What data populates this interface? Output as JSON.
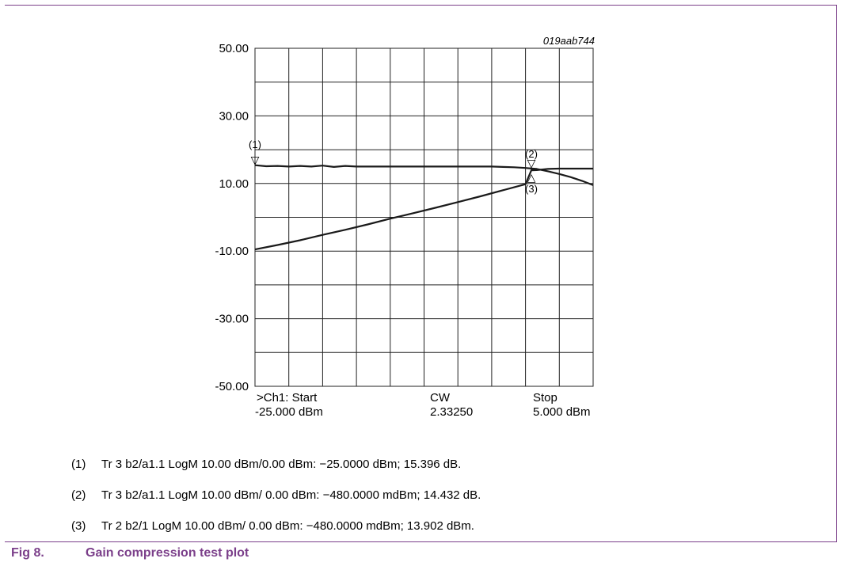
{
  "chart_data": {
    "type": "line",
    "title": "",
    "id_label": "019aab744",
    "xlabel": "",
    "ylabel": "",
    "x_unit": "dBm",
    "xlim": [
      -25,
      5
    ],
    "ylim": [
      -50,
      50
    ],
    "y_ticks": [
      "50.00",
      "30.00",
      "10.00",
      "-10.00",
      "-30.00",
      "-50.00"
    ],
    "y_tick_values": [
      50,
      30,
      10,
      -10,
      -30,
      -50
    ],
    "grid": true,
    "x_footer": [
      {
        "line1": ">Ch1: Start",
        "line2": "-25.000 dBm"
      },
      {
        "line1": "CW",
        "line2": "2.33250"
      },
      {
        "line1": "Stop",
        "line2": "5.000 dBm"
      }
    ],
    "series": [
      {
        "x": [
          -25,
          -24,
          -23,
          -22,
          -21,
          -20,
          -19,
          -18,
          -17,
          -16,
          -15,
          -14,
          -13,
          -12,
          -11,
          -10,
          -9,
          -8,
          -7,
          -6,
          -5,
          -4,
          -3,
          -2,
          -1,
          -0.48,
          0,
          1,
          2,
          3,
          4,
          5
        ],
        "y": [
          15.4,
          15.1,
          15.2,
          15.0,
          15.2,
          15.0,
          15.3,
          14.9,
          15.2,
          15.0,
          15.0,
          15.0,
          15.0,
          15.0,
          15.0,
          15.0,
          15.0,
          15.0,
          15.0,
          15.0,
          15.0,
          15.0,
          14.9,
          14.8,
          14.6,
          14.43,
          14.3,
          13.6,
          12.8,
          11.9,
          10.8,
          9.5
        ]
      },
      {
        "x": [
          -25,
          -23,
          -21,
          -19,
          -17,
          -15,
          -13,
          -11,
          -9,
          -7,
          -5,
          -3,
          -1,
          -0.48,
          0,
          1,
          2,
          3,
          4,
          5
        ],
        "y": [
          -9.5,
          -8.2,
          -6.8,
          -5.2,
          -3.7,
          -2.1,
          -0.4,
          1.2,
          2.8,
          4.5,
          6.2,
          8.0,
          9.8,
          13.9,
          13.95,
          14.3,
          14.4,
          14.4,
          14.4,
          14.4
        ]
      }
    ],
    "markers": [
      {
        "label": "(1)",
        "x": -25,
        "y": 15.396,
        "glyph": "▽"
      },
      {
        "label": "(2)",
        "x": -0.48,
        "y": 14.432,
        "glyph": "▽"
      },
      {
        "label": "(3)",
        "x": -0.48,
        "y": 13.902,
        "glyph": "△"
      }
    ]
  },
  "notes": [
    {
      "num": "(1)",
      "text": "Tr 3 b2/a1.1 LogM 10.00 dBm/0.00 dBm: −25.0000 dBm; 15.396 dB."
    },
    {
      "num": "(2)",
      "text": "Tr 3 b2/a1.1 LogM 10.00 dBm/ 0.00 dBm: −480.0000 mdBm; 14.432 dB."
    },
    {
      "num": "(3)",
      "text": "Tr 2 b2/1 LogM 10.00 dBm/ 0.00 dBm: −480.0000 mdBm; 13.902 dBm."
    }
  ],
  "caption": {
    "number": "Fig 8.",
    "title": "Gain compression test plot"
  },
  "colors": {
    "accent": "#7b3f8a",
    "trace": "#1a1a1a",
    "grid": "#222222"
  }
}
